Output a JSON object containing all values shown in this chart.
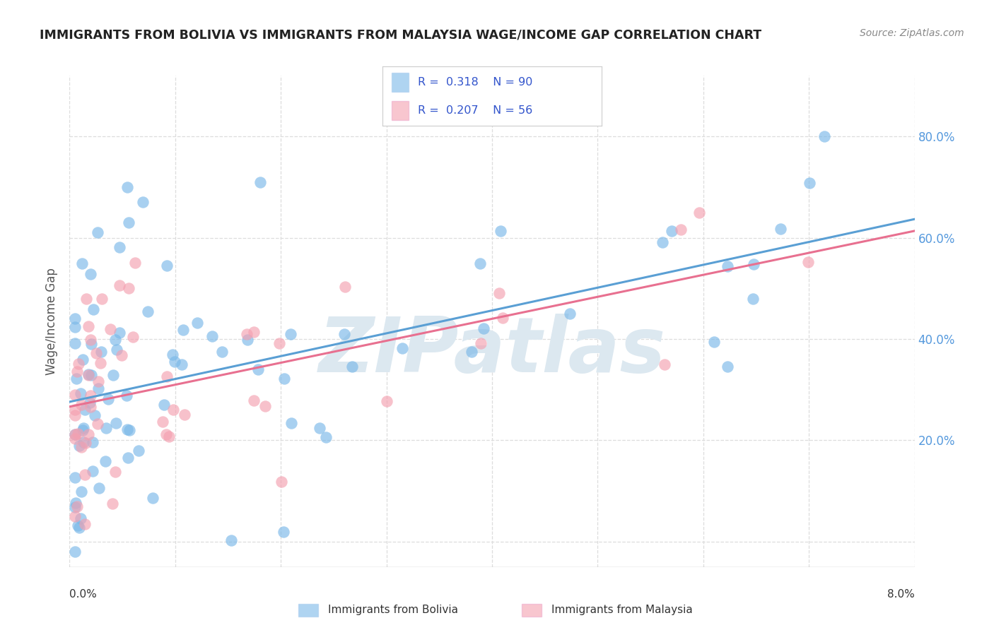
{
  "title": "IMMIGRANTS FROM BOLIVIA VS IMMIGRANTS FROM MALAYSIA WAGE/INCOME GAP CORRELATION CHART",
  "source": "Source: ZipAtlas.com",
  "ylabel": "Wage/Income Gap",
  "xlim": [
    0.0,
    0.08
  ],
  "ylim": [
    -0.05,
    0.92
  ],
  "yticks": [
    0.0,
    0.2,
    0.4,
    0.6,
    0.8
  ],
  "ytick_labels": [
    "",
    "20.0%",
    "40.0%",
    "60.0%",
    "80.0%"
  ],
  "xticks": [
    0.0,
    0.01,
    0.02,
    0.03,
    0.04,
    0.05,
    0.06,
    0.07,
    0.08
  ],
  "bolivia_color": "#7ab8e8",
  "malaysia_color": "#f4a0b0",
  "bolivia_line_color": "#5a9fd4",
  "malaysia_line_color": "#e87090",
  "bolivia_R": "0.318",
  "bolivia_N": "90",
  "malaysia_R": "0.207",
  "malaysia_N": "56",
  "watermark": "ZIPatlas",
  "background_color": "#ffffff",
  "legend_text_color": "#3355cc",
  "right_tick_color": "#5599dd",
  "grid_color": "#dddddd",
  "title_color": "#222222",
  "source_color": "#888888"
}
